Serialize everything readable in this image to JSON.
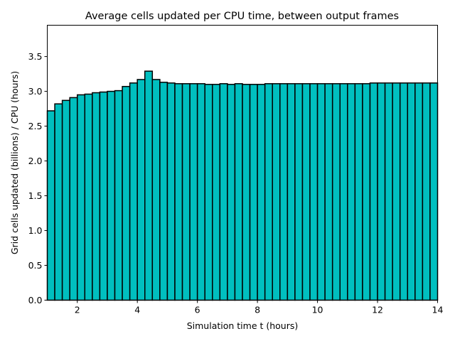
{
  "chart_data": {
    "type": "bar",
    "title": "Average cells updated per CPU time, between output frames",
    "xlabel": "Simulation time t (hours)",
    "ylabel": "Grid cells updated (billions) / CPU (hours)",
    "xlim": [
      1,
      14
    ],
    "ylim": [
      0,
      3.95
    ],
    "bar_start": 1.0,
    "bar_width": 0.25,
    "values": [
      2.72,
      2.82,
      2.87,
      2.91,
      2.95,
      2.96,
      2.98,
      2.99,
      3.0,
      3.01,
      3.07,
      3.12,
      3.17,
      3.29,
      3.17,
      3.13,
      3.12,
      3.11,
      3.11,
      3.11,
      3.11,
      3.1,
      3.1,
      3.11,
      3.1,
      3.11,
      3.1,
      3.1,
      3.1,
      3.11,
      3.11,
      3.11,
      3.11,
      3.11,
      3.11,
      3.11,
      3.11,
      3.11,
      3.11,
      3.11,
      3.11,
      3.11,
      3.11,
      3.12,
      3.12,
      3.12,
      3.12,
      3.12,
      3.12,
      3.12,
      3.12,
      3.12
    ],
    "bar_color": "#00bfbf",
    "edge_color": "#000000",
    "xticks": [
      2,
      4,
      6,
      8,
      10,
      12,
      14
    ],
    "yticks": [
      0.0,
      0.5,
      1.0,
      1.5,
      2.0,
      2.5,
      3.0,
      3.5
    ],
    "ytick_labels": [
      "0.0",
      "0.5",
      "1.0",
      "1.5",
      "2.0",
      "2.5",
      "3.0",
      "3.5"
    ],
    "xtick_labels": [
      "2",
      "4",
      "6",
      "8",
      "10",
      "12",
      "14"
    ],
    "grid": false,
    "legend": "none"
  }
}
